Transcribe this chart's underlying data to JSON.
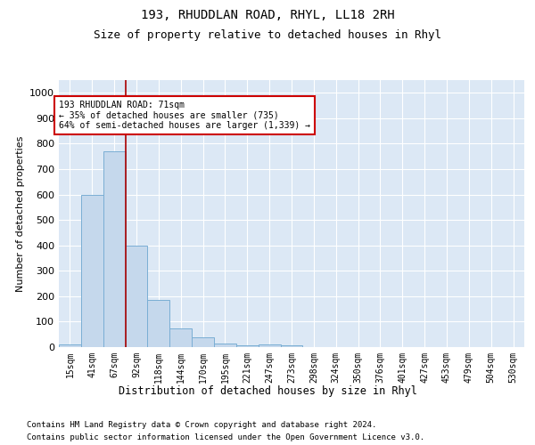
{
  "title1": "193, RHUDDLAN ROAD, RHYL, LL18 2RH",
  "title2": "Size of property relative to detached houses in Rhyl",
  "xlabel": "Distribution of detached houses by size in Rhyl",
  "ylabel": "Number of detached properties",
  "categories": [
    "15sqm",
    "41sqm",
    "67sqm",
    "92sqm",
    "118sqm",
    "144sqm",
    "170sqm",
    "195sqm",
    "221sqm",
    "247sqm",
    "273sqm",
    "298sqm",
    "324sqm",
    "350sqm",
    "376sqm",
    "401sqm",
    "427sqm",
    "453sqm",
    "479sqm",
    "504sqm",
    "530sqm"
  ],
  "values": [
    10,
    600,
    770,
    400,
    185,
    75,
    37,
    14,
    8,
    10,
    6,
    0,
    0,
    0,
    0,
    0,
    0,
    0,
    0,
    0,
    0
  ],
  "bar_color": "#c5d8ec",
  "bar_edge_color": "#7aaed4",
  "vline_x": 2.5,
  "vline_color": "#aa0000",
  "annotation_text": "193 RHUDDLAN ROAD: 71sqm\n← 35% of detached houses are smaller (735)\n64% of semi-detached houses are larger (1,339) →",
  "annotation_box_color": "#ffffff",
  "annotation_box_edge": "#cc0000",
  "ylim": [
    0,
    1050
  ],
  "yticks": [
    0,
    100,
    200,
    300,
    400,
    500,
    600,
    700,
    800,
    900,
    1000
  ],
  "background_color": "#dce8f5",
  "footer1": "Contains HM Land Registry data © Crown copyright and database right 2024.",
  "footer2": "Contains public sector information licensed under the Open Government Licence v3.0."
}
